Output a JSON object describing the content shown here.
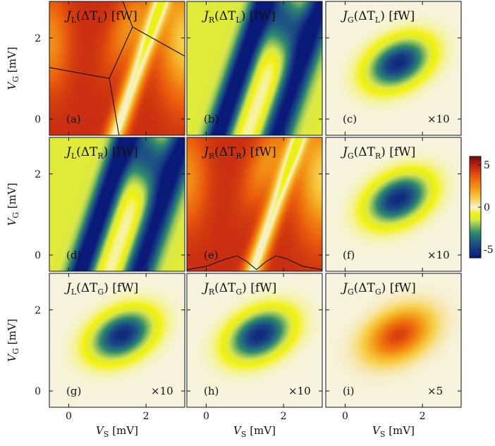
{
  "chart_data": {
    "type": "heatmap",
    "layout": "3x3 grid of heatmaps",
    "xlabel": "V_S [mV]",
    "ylabel": "V_G [mV]",
    "xlim": [
      -0.5,
      3.0
    ],
    "ylim": [
      -0.4,
      2.9
    ],
    "x_ticks": [
      0,
      2
    ],
    "y_ticks": [
      0,
      2
    ],
    "colorbar": {
      "range": [
        -6,
        6
      ],
      "ticks": [
        {
          "value": 5,
          "label": "5"
        },
        {
          "value": 0,
          "label": "0"
        },
        {
          "value": -5,
          "label": "-5"
        }
      ],
      "colormap_stops": [
        {
          "v": -6,
          "color": "#0a1a78"
        },
        {
          "v": -4.3,
          "color": "#1d4f86"
        },
        {
          "v": -3.0,
          "color": "#2e8a6e"
        },
        {
          "v": -1.5,
          "color": "#d8e84a"
        },
        {
          "v": -0.8,
          "color": "#f2f20a"
        },
        {
          "v": 0,
          "color": "#f7f3de"
        },
        {
          "v": 1.0,
          "color": "#f7d04a"
        },
        {
          "v": 2.2,
          "color": "#f39a16"
        },
        {
          "v": 3.6,
          "color": "#ea5b0c"
        },
        {
          "v": 4.8,
          "color": "#c22512"
        },
        {
          "v": 6,
          "color": "#6e0b08"
        }
      ]
    },
    "panels": [
      {
        "id": "a",
        "title_main": "J",
        "title_sub": "L",
        "title_arg": "(ΔT",
        "title_arg_sub": "L",
        "title_unit": ") [fW]",
        "letter": "(a)",
        "scale": "",
        "pattern": "stripes_L"
      },
      {
        "id": "b",
        "title_main": "J",
        "title_sub": "R",
        "title_arg": "(ΔT",
        "title_arg_sub": "L",
        "title_unit": ") [fW]",
        "letter": "(b)",
        "scale": "",
        "pattern": "stripes_R"
      },
      {
        "id": "c",
        "title_main": "J",
        "title_sub": "G",
        "title_arg": "(ΔT",
        "title_arg_sub": "L",
        "title_unit": ") [fW]",
        "letter": "(c)",
        "scale": "×10",
        "pattern": "blob_neg"
      },
      {
        "id": "d",
        "title_main": "J",
        "title_sub": "L",
        "title_arg": "(ΔT",
        "title_arg_sub": "R",
        "title_unit": ") [fW]",
        "letter": "(d)",
        "scale": "",
        "pattern": "stripes_R"
      },
      {
        "id": "e",
        "title_main": "J",
        "title_sub": "R",
        "title_arg": "(ΔT",
        "title_arg_sub": "R",
        "title_unit": ") [fW]",
        "letter": "(e)",
        "scale": "",
        "pattern": "stripes_L"
      },
      {
        "id": "f",
        "title_main": "J",
        "title_sub": "G",
        "title_arg": "(ΔT",
        "title_arg_sub": "R",
        "title_unit": ") [fW]",
        "letter": "(f)",
        "scale": "×10",
        "pattern": "blob_neg"
      },
      {
        "id": "g",
        "title_main": "J",
        "title_sub": "L",
        "title_arg": "(ΔT",
        "title_arg_sub": "G",
        "title_unit": ") [fW]",
        "letter": "(g)",
        "scale": "×10",
        "pattern": "blob_neg"
      },
      {
        "id": "h",
        "title_main": "J",
        "title_sub": "R",
        "title_arg": "(ΔT",
        "title_arg_sub": "G",
        "title_unit": ") [fW]",
        "letter": "(h)",
        "scale": "×10",
        "pattern": "blob_neg"
      },
      {
        "id": "i",
        "title_main": "J",
        "title_sub": "G",
        "title_arg": "(ΔT",
        "title_arg_sub": "G",
        "title_unit": ") [fW]",
        "letter": "(i)",
        "scale": "×5",
        "pattern": "blob_pos"
      }
    ],
    "overlays": {
      "a": {
        "type": "lines",
        "segments": [
          [
            [
              -0.5,
              1.27
            ],
            [
              1.05,
              1.0
            ]
          ],
          [
            [
              1.05,
              1.0
            ],
            [
              1.65,
              2.27
            ]
          ],
          [
            [
              1.65,
              2.27
            ],
            [
              3.0,
              1.55
            ]
          ],
          [
            [
              1.65,
              2.27
            ],
            [
              1.4,
              2.9
            ]
          ],
          [
            [
              1.05,
              1.0
            ],
            [
              1.3,
              -0.4
            ]
          ]
        ]
      },
      "e": {
        "type": "curve",
        "description": "conductance-like trace near bottom",
        "x": [
          -0.5,
          0.0,
          0.5,
          0.8,
          1.05,
          1.3,
          1.55,
          1.8,
          2.1,
          2.5,
          3.0
        ],
        "y": [
          -0.36,
          -0.28,
          -0.1,
          -0.02,
          -0.16,
          -0.36,
          -0.16,
          -0.02,
          -0.1,
          -0.28,
          -0.36
        ]
      }
    }
  },
  "labels": {
    "ylabel_main": "V",
    "ylabel_sub": "G",
    "ylabel_unit": " [mV]",
    "xlabel_main": "V",
    "xlabel_sub": "S",
    "xlabel_unit": " [mV]"
  }
}
